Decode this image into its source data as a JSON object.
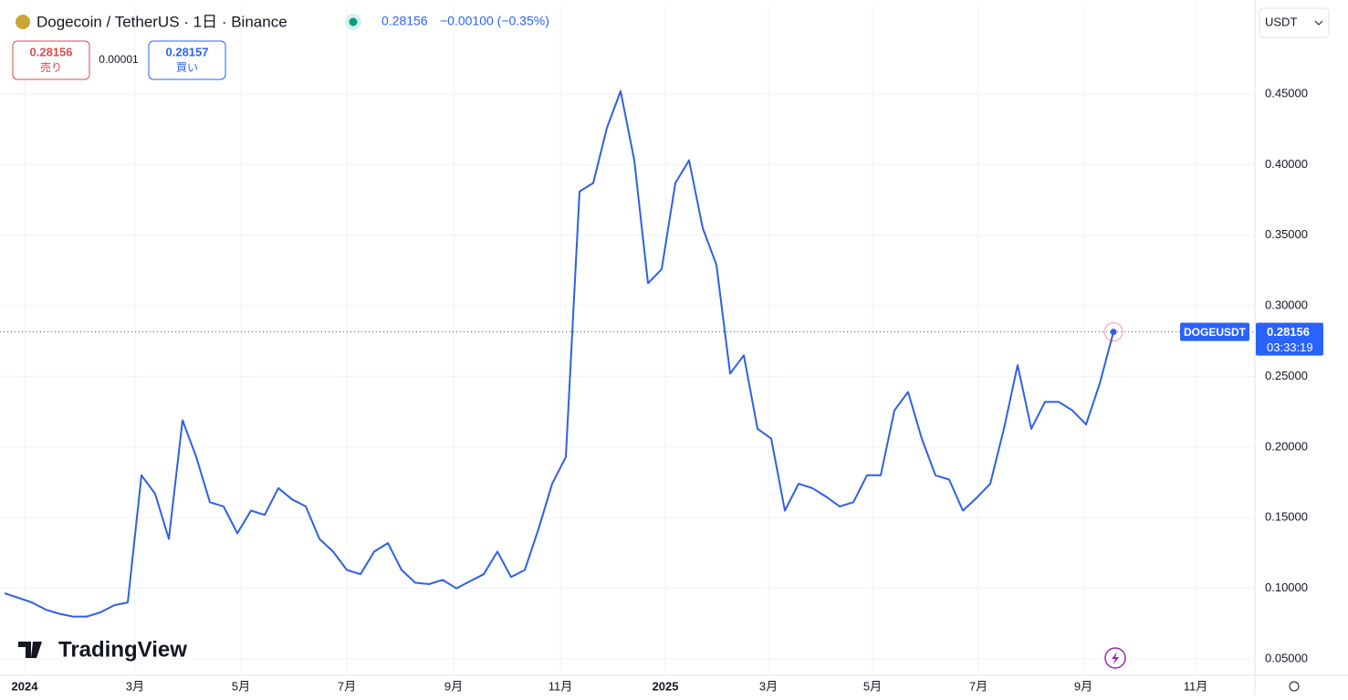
{
  "header": {
    "title": "Dogecoin / TetherUS · 1日 · Binance",
    "change": "−0.00100 (−0.35%)",
    "sell_price": "0.28156",
    "sell_label": "売り",
    "spread": "0.00001",
    "buy_price": "0.28157",
    "buy_label": "買い",
    "currency": "USDT",
    "logo": "TradingView"
  },
  "chart_data": {
    "type": "line",
    "symbol": "DOGEUSDT",
    "countdown": "03:33:19",
    "last_value": 0.28156,
    "series": [
      {
        "name": "DOGEUSDT",
        "color": "#2f5fe6",
        "values": [
          0.0965,
          0.0933,
          0.09,
          0.085,
          0.082,
          0.08,
          0.08,
          0.083,
          0.088,
          0.09,
          0.18,
          0.167,
          0.135,
          0.219,
          0.193,
          0.161,
          0.158,
          0.139,
          0.155,
          0.152,
          0.171,
          0.163,
          0.158,
          0.135,
          0.126,
          0.113,
          0.11,
          0.126,
          0.132,
          0.113,
          0.104,
          0.103,
          0.106,
          0.1,
          0.105,
          0.11,
          0.126,
          0.108,
          0.113,
          0.142,
          0.174,
          0.193,
          0.381,
          0.387,
          0.426,
          0.452,
          0.403,
          0.316,
          0.326,
          0.387,
          0.403,
          0.355,
          0.329,
          0.252,
          0.265,
          0.213,
          0.206,
          0.155,
          0.174,
          0.171,
          0.165,
          0.158,
          0.161,
          0.18,
          0.18,
          0.226,
          0.239,
          0.206,
          0.18,
          0.177,
          0.155,
          0.164,
          0.174,
          0.213,
          0.258,
          0.213,
          0.232,
          0.232,
          0.226,
          0.216,
          0.245,
          0.28156
        ]
      }
    ],
    "xlim": [
      -0.33,
      91.33
    ],
    "xticks": [
      {
        "value": 1.47,
        "label": "2024"
      },
      {
        "value": 9.53,
        "label": "3月"
      },
      {
        "value": 17.27,
        "label": "5月"
      },
      {
        "value": 25,
        "label": "7月"
      },
      {
        "value": 32.8,
        "label": "9月"
      },
      {
        "value": 40.6,
        "label": "11月"
      },
      {
        "value": 48.27,
        "label": "2025"
      },
      {
        "value": 55.8,
        "label": "3月"
      },
      {
        "value": 63.4,
        "label": "5月"
      },
      {
        "value": 71.13,
        "label": "7月"
      },
      {
        "value": 78.8,
        "label": "9月"
      },
      {
        "value": 87,
        "label": "11月"
      }
    ],
    "ylim": [
      0.0384,
      0.5133
    ],
    "yticks": [
      {
        "value": 0.05,
        "label": "0.05000"
      },
      {
        "value": 0.1,
        "label": "0.10000"
      },
      {
        "value": 0.15,
        "label": "0.15000"
      },
      {
        "value": 0.2,
        "label": "0.20000"
      },
      {
        "value": 0.25,
        "label": "0.25000"
      },
      {
        "value": 0.3,
        "label": "0.30000"
      },
      {
        "value": 0.35,
        "label": "0.35000"
      },
      {
        "value": 0.4,
        "label": "0.40000"
      },
      {
        "value": 0.45,
        "label": "0.45000"
      }
    ],
    "grid": true
  }
}
